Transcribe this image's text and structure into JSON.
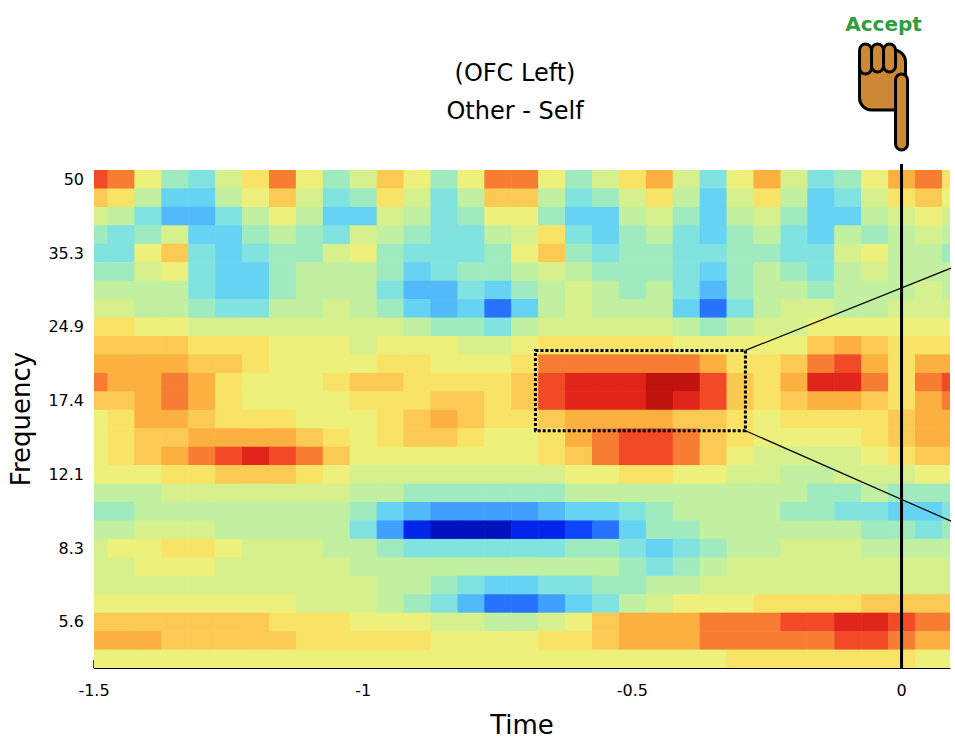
{
  "chart_data": {
    "type": "heatmap",
    "title": "Other - Self",
    "subtitle": "(OFC Left)",
    "x_label": "Time",
    "y_label": "Frequency",
    "x": [
      -1.5,
      -1.45,
      -1.4,
      -1.35,
      -1.3,
      -1.25,
      -1.2,
      -1.15,
      -1.1,
      -1.05,
      -1,
      -0.95,
      -0.9,
      -0.85,
      -0.8,
      -0.75,
      -0.7,
      -0.65,
      -0.6,
      -0.55,
      -0.5,
      -0.45,
      -0.4,
      -0.35,
      -0.3,
      -0.25,
      -0.2,
      -0.15,
      -0.1,
      -0.05,
      0,
      0.05,
      0.1
    ],
    "y": [
      "50",
      null,
      null,
      null,
      "35.3",
      null,
      null,
      null,
      "24.9",
      null,
      null,
      null,
      "17.4",
      null,
      null,
      null,
      "12.1",
      null,
      null,
      null,
      "8.3",
      null,
      null,
      null,
      "5.6",
      null,
      null
    ],
    "values": [
      [
        0.7,
        0.6,
        0.2,
        -0.1,
        -0.2,
        0.1,
        0.3,
        0.6,
        0.2,
        -0.1,
        0.1,
        0.4,
        0.2,
        -0.1,
        0.2,
        0.6,
        0.6,
        0.2,
        -0.1,
        0.1,
        0.3,
        0.5,
        0.1,
        -0.2,
        0.2,
        0.5,
        0.1,
        -0.2,
        -0.1,
        0.2,
        0.5,
        0.6,
        0.3
      ],
      [
        0.4,
        0.3,
        0.0,
        -0.3,
        -0.3,
        0.0,
        0.2,
        0.4,
        0.1,
        -0.2,
        -0.1,
        0.3,
        0.1,
        -0.2,
        0.0,
        0.4,
        0.4,
        0.0,
        -0.2,
        -0.1,
        0.1,
        0.3,
        0.0,
        -0.3,
        0.1,
        0.3,
        0.0,
        -0.3,
        -0.2,
        0.1,
        0.3,
        0.4,
        0.2
      ],
      [
        0.1,
        0.0,
        -0.2,
        -0.4,
        -0.4,
        -0.2,
        0.0,
        0.2,
        0.0,
        -0.3,
        -0.3,
        0.1,
        0.0,
        -0.2,
        -0.1,
        0.2,
        0.2,
        -0.1,
        -0.3,
        -0.3,
        0.0,
        0.1,
        -0.1,
        -0.3,
        0.0,
        0.1,
        -0.1,
        -0.3,
        -0.3,
        0.0,
        0.1,
        0.2,
        0.1
      ],
      [
        -0.1,
        -0.2,
        -0.1,
        0.1,
        -0.3,
        -0.3,
        -0.1,
        0.0,
        -0.1,
        -0.2,
        0.1,
        0.0,
        -0.1,
        -0.2,
        -0.2,
        0.0,
        0.1,
        0.3,
        -0.2,
        -0.3,
        -0.1,
        0.0,
        -0.2,
        -0.3,
        -0.1,
        0.0,
        -0.2,
        -0.3,
        0.0,
        -0.1,
        0.0,
        0.1,
        0.0
      ],
      [
        -0.2,
        -0.2,
        0.2,
        0.4,
        -0.2,
        -0.3,
        -0.2,
        -0.1,
        -0.1,
        0.1,
        0.2,
        -0.1,
        -0.2,
        -0.2,
        -0.2,
        -0.1,
        0.2,
        0.4,
        -0.1,
        -0.2,
        -0.1,
        -0.1,
        -0.2,
        -0.2,
        -0.1,
        -0.1,
        -0.2,
        -0.2,
        0.1,
        0.2,
        0.0,
        0.0,
        -0.1
      ],
      [
        -0.1,
        -0.1,
        0.1,
        0.2,
        -0.2,
        -0.3,
        -0.3,
        -0.1,
        0.0,
        0.0,
        0.0,
        -0.1,
        -0.3,
        -0.2,
        -0.1,
        -0.1,
        0.0,
        0.1,
        0.0,
        -0.1,
        -0.1,
        -0.1,
        -0.2,
        -0.3,
        -0.1,
        0.0,
        -0.1,
        -0.2,
        0.0,
        0.1,
        0.0,
        0.0,
        0.0
      ],
      [
        0.0,
        0.0,
        0.0,
        0.0,
        -0.2,
        -0.3,
        -0.3,
        -0.1,
        0.0,
        0.0,
        0.0,
        -0.2,
        -0.4,
        -0.4,
        -0.2,
        -0.3,
        -0.1,
        0.0,
        0.1,
        0.0,
        -0.1,
        0.0,
        -0.2,
        -0.4,
        -0.1,
        0.0,
        0.0,
        -0.1,
        0.0,
        0.0,
        0.0,
        0.1,
        0.0
      ],
      [
        0.1,
        0.1,
        0.0,
        0.0,
        -0.1,
        -0.2,
        -0.2,
        0.0,
        0.0,
        0.1,
        0.0,
        -0.1,
        -0.3,
        -0.4,
        -0.3,
        -0.6,
        -0.3,
        0.0,
        0.1,
        0.0,
        0.0,
        0.0,
        -0.3,
        -0.6,
        -0.2,
        0.0,
        0.1,
        0.1,
        0.0,
        0.0,
        0.1,
        0.1,
        0.1
      ],
      [
        0.3,
        0.3,
        0.2,
        0.2,
        0.1,
        0.1,
        0.1,
        0.1,
        0.1,
        0.1,
        0.1,
        0.1,
        0.0,
        -0.1,
        -0.1,
        -0.2,
        0.0,
        0.1,
        0.1,
        0.1,
        0.1,
        0.1,
        0.0,
        -0.1,
        0.0,
        0.1,
        0.1,
        0.2,
        0.2,
        0.2,
        0.2,
        0.2,
        0.2
      ],
      [
        0.4,
        0.4,
        0.4,
        0.4,
        0.3,
        0.3,
        0.3,
        0.2,
        0.2,
        0.2,
        0.1,
        0.2,
        0.2,
        0.2,
        0.1,
        0.1,
        0.2,
        0.3,
        0.3,
        0.3,
        0.3,
        0.3,
        0.2,
        0.2,
        0.2,
        0.2,
        0.2,
        0.4,
        0.5,
        0.4,
        0.3,
        0.3,
        0.3
      ],
      [
        0.5,
        0.5,
        0.5,
        0.5,
        0.4,
        0.4,
        0.3,
        0.2,
        0.2,
        0.2,
        0.2,
        0.3,
        0.3,
        0.2,
        0.2,
        0.2,
        0.3,
        0.6,
        0.6,
        0.6,
        0.6,
        0.6,
        0.6,
        0.5,
        0.3,
        0.3,
        0.4,
        0.6,
        0.7,
        0.5,
        0.3,
        0.5,
        0.5
      ],
      [
        0.6,
        0.5,
        0.5,
        0.6,
        0.5,
        0.3,
        0.2,
        0.2,
        0.2,
        0.3,
        0.4,
        0.4,
        0.3,
        0.3,
        0.3,
        0.3,
        0.4,
        0.7,
        0.8,
        0.8,
        0.8,
        0.9,
        0.9,
        0.7,
        0.4,
        0.3,
        0.5,
        0.8,
        0.8,
        0.6,
        0.3,
        0.6,
        0.7
      ],
      [
        0.4,
        0.4,
        0.5,
        0.6,
        0.5,
        0.3,
        0.2,
        0.2,
        0.2,
        0.2,
        0.3,
        0.3,
        0.3,
        0.4,
        0.4,
        0.3,
        0.4,
        0.7,
        0.8,
        0.8,
        0.8,
        0.9,
        0.8,
        0.7,
        0.4,
        0.3,
        0.4,
        0.5,
        0.5,
        0.4,
        0.3,
        0.5,
        0.6
      ],
      [
        0.2,
        0.3,
        0.5,
        0.5,
        0.4,
        0.3,
        0.3,
        0.3,
        0.2,
        0.2,
        0.2,
        0.3,
        0.4,
        0.5,
        0.4,
        0.3,
        0.3,
        0.4,
        0.5,
        0.5,
        0.5,
        0.5,
        0.4,
        0.4,
        0.3,
        0.2,
        0.3,
        0.3,
        0.3,
        0.3,
        0.4,
        0.5,
        0.5
      ],
      [
        0.2,
        0.3,
        0.4,
        0.4,
        0.5,
        0.5,
        0.5,
        0.5,
        0.4,
        0.3,
        0.2,
        0.3,
        0.4,
        0.4,
        0.3,
        0.2,
        0.2,
        0.3,
        0.5,
        0.6,
        0.7,
        0.7,
        0.6,
        0.4,
        0.3,
        0.2,
        0.2,
        0.2,
        0.2,
        0.3,
        0.4,
        0.5,
        0.5
      ],
      [
        0.2,
        0.3,
        0.4,
        0.5,
        0.6,
        0.7,
        0.8,
        0.7,
        0.6,
        0.4,
        0.2,
        0.2,
        0.2,
        0.2,
        0.2,
        0.2,
        0.2,
        0.3,
        0.4,
        0.6,
        0.7,
        0.7,
        0.6,
        0.4,
        0.2,
        0.1,
        0.1,
        0.1,
        0.1,
        0.2,
        0.3,
        0.4,
        0.4
      ],
      [
        0.2,
        0.2,
        0.2,
        0.3,
        0.3,
        0.4,
        0.4,
        0.4,
        0.3,
        0.2,
        0.1,
        0.1,
        0.1,
        0.1,
        0.1,
        0.1,
        0.1,
        0.1,
        0.2,
        0.2,
        0.3,
        0.3,
        0.2,
        0.2,
        0.1,
        0.1,
        0.0,
        0.0,
        0.1,
        0.1,
        0.1,
        0.2,
        0.2
      ],
      [
        0.0,
        0.0,
        0.0,
        0.1,
        0.1,
        0.1,
        0.1,
        0.1,
        0.1,
        0.1,
        0.0,
        0.0,
        -0.1,
        -0.1,
        -0.1,
        -0.1,
        -0.1,
        -0.1,
        0.0,
        0.0,
        0.0,
        0.0,
        0.0,
        0.0,
        0.0,
        0.0,
        0.0,
        -0.1,
        -0.1,
        0.0,
        -0.1,
        -0.1,
        -0.1
      ],
      [
        -0.1,
        -0.1,
        0.0,
        0.0,
        0.0,
        0.0,
        0.0,
        0.0,
        0.0,
        0.0,
        -0.1,
        -0.3,
        -0.4,
        -0.5,
        -0.5,
        -0.5,
        -0.5,
        -0.4,
        -0.3,
        -0.3,
        -0.2,
        -0.1,
        0.0,
        0.0,
        0.0,
        0.0,
        -0.1,
        -0.1,
        -0.2,
        -0.2,
        -0.3,
        -0.3,
        -0.2
      ],
      [
        0.0,
        0.0,
        0.1,
        0.1,
        0.1,
        0.0,
        0.0,
        0.0,
        0.0,
        0.0,
        -0.2,
        -0.5,
        -0.8,
        -0.9,
        -0.9,
        -0.9,
        -0.8,
        -0.8,
        -0.7,
        -0.6,
        -0.3,
        -0.1,
        -0.1,
        0.0,
        0.0,
        0.0,
        0.0,
        0.0,
        0.0,
        -0.1,
        -0.1,
        -0.2,
        -0.1
      ],
      [
        0.1,
        0.2,
        0.2,
        0.3,
        0.3,
        0.2,
        0.1,
        0.1,
        0.1,
        0.0,
        0.0,
        -0.1,
        -0.2,
        -0.2,
        -0.2,
        -0.2,
        -0.2,
        -0.2,
        -0.1,
        -0.1,
        -0.2,
        -0.3,
        -0.2,
        -0.1,
        0.0,
        0.0,
        0.1,
        0.1,
        0.1,
        0.0,
        0.0,
        0.0,
        0.0
      ],
      [
        0.1,
        0.1,
        0.2,
        0.2,
        0.2,
        0.1,
        0.1,
        0.1,
        0.1,
        0.1,
        0.0,
        0.0,
        0.0,
        0.0,
        0.0,
        0.0,
        0.0,
        0.0,
        0.0,
        0.0,
        -0.1,
        -0.2,
        -0.1,
        0.0,
        0.1,
        0.1,
        0.1,
        0.1,
        0.1,
        0.1,
        0.1,
        0.1,
        0.1
      ],
      [
        0.1,
        0.1,
        0.1,
        0.1,
        0.1,
        0.1,
        0.1,
        0.1,
        0.1,
        0.1,
        0.1,
        0.0,
        0.0,
        -0.1,
        -0.2,
        -0.3,
        -0.3,
        -0.2,
        -0.2,
        -0.1,
        -0.1,
        0.0,
        0.0,
        0.1,
        0.1,
        0.1,
        0.1,
        0.1,
        0.1,
        0.1,
        0.1,
        0.1,
        0.1
      ],
      [
        0.2,
        0.2,
        0.2,
        0.2,
        0.2,
        0.2,
        0.2,
        0.2,
        0.1,
        0.1,
        0.1,
        0.0,
        -0.1,
        -0.2,
        -0.4,
        -0.6,
        -0.6,
        -0.5,
        -0.3,
        -0.2,
        0.0,
        0.1,
        0.2,
        0.2,
        0.2,
        0.3,
        0.3,
        0.3,
        0.3,
        0.4,
        0.4,
        0.4,
        0.4
      ],
      [
        0.4,
        0.4,
        0.4,
        0.4,
        0.4,
        0.4,
        0.4,
        0.3,
        0.3,
        0.3,
        0.2,
        0.2,
        0.2,
        0.1,
        0.1,
        0.0,
        0.0,
        0.1,
        0.2,
        0.4,
        0.5,
        0.5,
        0.5,
        0.6,
        0.6,
        0.6,
        0.7,
        0.7,
        0.8,
        0.8,
        0.7,
        0.6,
        0.6
      ],
      [
        0.5,
        0.5,
        0.5,
        0.4,
        0.4,
        0.4,
        0.4,
        0.4,
        0.3,
        0.3,
        0.3,
        0.3,
        0.3,
        0.2,
        0.2,
        0.2,
        0.2,
        0.3,
        0.3,
        0.4,
        0.5,
        0.5,
        0.5,
        0.6,
        0.6,
        0.6,
        0.6,
        0.6,
        0.7,
        0.7,
        0.6,
        0.5,
        0.5
      ],
      [
        0.2,
        0.2,
        0.2,
        0.2,
        0.2,
        0.2,
        0.2,
        0.2,
        0.2,
        0.2,
        0.2,
        0.2,
        0.2,
        0.2,
        0.2,
        0.2,
        0.2,
        0.2,
        0.2,
        0.2,
        0.2,
        0.2,
        0.2,
        0.2,
        0.3,
        0.3,
        0.3,
        0.3,
        0.3,
        0.3,
        0.3,
        0.2,
        0.2
      ]
    ],
    "zlim": [
      -1,
      1
    ],
    "xlim": [
      -1.5,
      0.09
    ],
    "xticks": [
      -1.5,
      -1,
      -0.5,
      0
    ],
    "grid": false,
    "annotations": [
      {
        "text": "Accept",
        "x": 0
      }
    ],
    "box": {
      "x": [
        -0.68,
        -0.29
      ],
      "y": [
        15.0,
        22.2
      ]
    }
  }
}
